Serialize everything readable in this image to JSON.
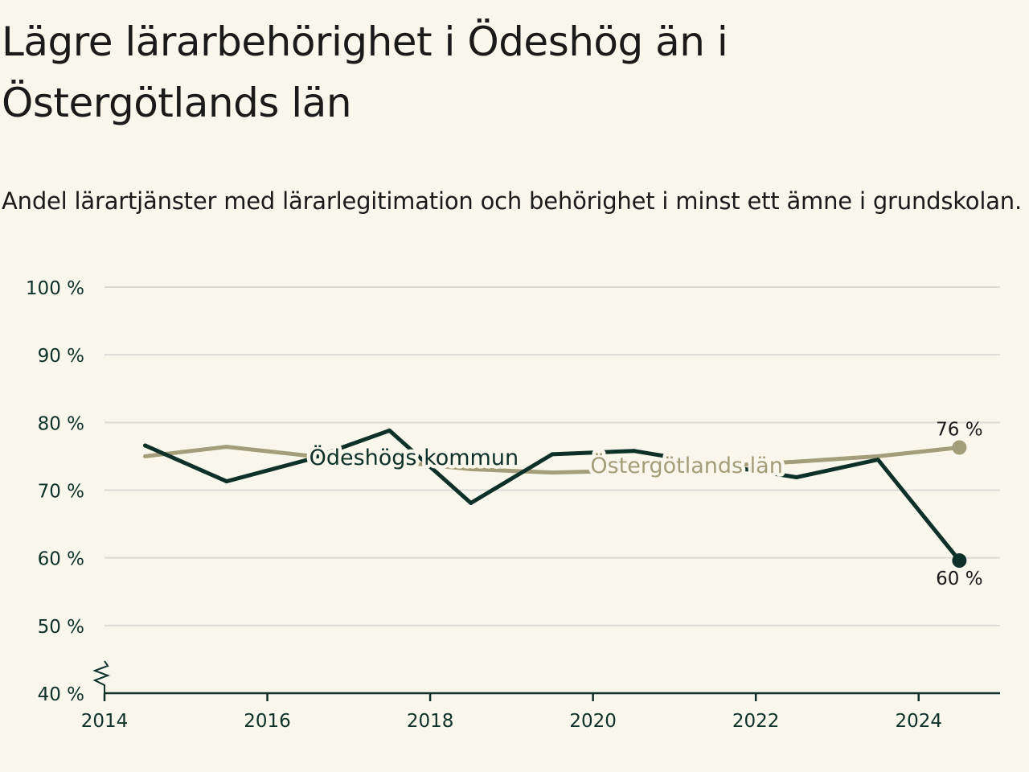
{
  "header": {
    "title": "Lägre lärarbehörighet i Ödeshög än i Östergötlands län",
    "subtitle": "Andel lärartjänster med lärarlegitimation och behörighet i minst ett ämne i grundskolan."
  },
  "colors": {
    "background": "#f9f7ec",
    "kommun": "#0d3129",
    "lan": "#a39d79",
    "grid": "#dcdbd6",
    "axis": "#0d3129"
  },
  "chart_data": {
    "type": "line",
    "title": "Lägre lärarbehörighet i Ödeshög än i Östergötlands län",
    "subtitle": "Andel lärartjänster med lärarlegitimation och behörighet i minst ett ämne i grundskolan.",
    "xlabel": "",
    "ylabel": "",
    "x": [
      2014.5,
      2015.5,
      2016.5,
      2017.5,
      2018.5,
      2019.5,
      2020.5,
      2021.5,
      2022.5,
      2023.5,
      2024.5
    ],
    "xlim": [
      2014,
      2025
    ],
    "xticks": [
      2014,
      2016,
      2018,
      2020,
      2022,
      2024
    ],
    "xtick_labels": [
      "2014",
      "2016",
      "2018",
      "2020",
      "2022",
      "2024"
    ],
    "ylim": [
      40,
      100
    ],
    "yticks": [
      40,
      50,
      60,
      70,
      80,
      90,
      100
    ],
    "ytick_labels": [
      "40 %",
      "50 %",
      "60 %",
      "70 %",
      "80 %",
      "90 %",
      "100 %"
    ],
    "y_axis_break": true,
    "grid": true,
    "series": [
      {
        "name": "Östergötlands län",
        "color": "#a39d79",
        "values": [
          75.0,
          76.4,
          75.1,
          74.3,
          73.1,
          72.6,
          72.9,
          73.5,
          74.2,
          75.0,
          76.3
        ],
        "end_label": "76 %"
      },
      {
        "name": "Ödeshögs kommun",
        "color": "#0d3129",
        "values": [
          76.6,
          71.3,
          74.5,
          78.8,
          68.1,
          75.3,
          75.8,
          73.8,
          71.9,
          74.5,
          59.6
        ],
        "end_label": "60 %"
      }
    ],
    "annotations": [
      {
        "text": "Ödeshögs kommun",
        "series": "Ödeshögs kommun",
        "x": 2017.8,
        "y": 74.8
      },
      {
        "text": "Östergötlands län",
        "series": "Östergötlands län",
        "x": 2021.15,
        "y": 73.6
      }
    ]
  }
}
